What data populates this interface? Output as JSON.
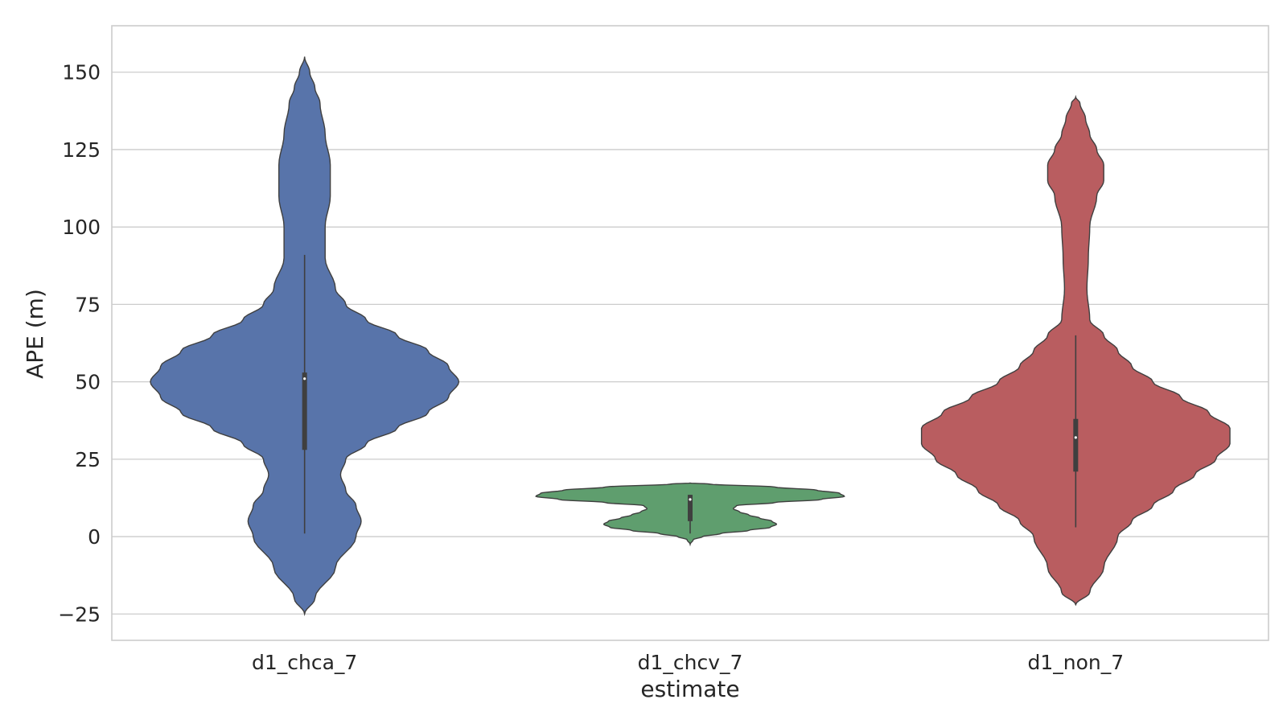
{
  "chart_data": {
    "type": "violin",
    "title": "",
    "xlabel": "estimate",
    "ylabel": "APE (m)",
    "ylim": [
      -33.5,
      165
    ],
    "yticks": [
      -25,
      0,
      25,
      50,
      75,
      100,
      125,
      150
    ],
    "ytick_labels": [
      "−25",
      "0",
      "25",
      "50",
      "75",
      "100",
      "125",
      "150"
    ],
    "grid": true,
    "categories": [
      "d1_chca_7",
      "d1_chcv_7",
      "d1_non_7"
    ],
    "series": [
      {
        "category": "d1_chca_7",
        "color": "#5874aa",
        "min": 1,
        "q1": 28,
        "median": 51,
        "q3": 53,
        "max": 91,
        "density": [
          [
            -25,
            0
          ],
          [
            -20,
            0.01
          ],
          [
            -10,
            0.03
          ],
          [
            0,
            0.05
          ],
          [
            5,
            0.055
          ],
          [
            10,
            0.05
          ],
          [
            15,
            0.04
          ],
          [
            20,
            0.035
          ],
          [
            25,
            0.04
          ],
          [
            30,
            0.06
          ],
          [
            35,
            0.09
          ],
          [
            40,
            0.12
          ],
          [
            45,
            0.14
          ],
          [
            50,
            0.15
          ],
          [
            55,
            0.14
          ],
          [
            60,
            0.12
          ],
          [
            65,
            0.09
          ],
          [
            70,
            0.06
          ],
          [
            75,
            0.04
          ],
          [
            80,
            0.03
          ],
          [
            90,
            0.02
          ],
          [
            100,
            0.02
          ],
          [
            110,
            0.025
          ],
          [
            120,
            0.025
          ],
          [
            130,
            0.02
          ],
          [
            140,
            0.015
          ],
          [
            145,
            0.01
          ],
          [
            150,
            0.005
          ],
          [
            155,
            0
          ]
        ]
      },
      {
        "category": "d1_chcv_7",
        "color": "#5f9e6e",
        "min": 1,
        "q1": 5,
        "median": 12,
        "q3": 13.5,
        "max": 13.5,
        "density": [
          [
            -2.5,
            0
          ],
          [
            -1,
            0.02
          ],
          [
            0,
            0.08
          ],
          [
            1,
            0.2
          ],
          [
            2,
            0.38
          ],
          [
            3,
            0.52
          ],
          [
            4,
            0.56
          ],
          [
            5,
            0.53
          ],
          [
            6,
            0.45
          ],
          [
            7,
            0.38
          ],
          [
            8,
            0.32
          ],
          [
            9,
            0.28
          ],
          [
            10,
            0.3
          ],
          [
            11,
            0.55
          ],
          [
            12,
            0.85
          ],
          [
            13,
            1.0
          ],
          [
            14,
            0.97
          ],
          [
            15,
            0.82
          ],
          [
            16,
            0.55
          ],
          [
            17,
            0.12
          ],
          [
            17.3,
            0
          ]
        ]
      },
      {
        "category": "d1_non_7",
        "color": "#b95d60",
        "min": 3,
        "q1": 21,
        "median": 32,
        "q3": 38,
        "max": 65,
        "density": [
          [
            -22,
            0
          ],
          [
            -18,
            0.01
          ],
          [
            -10,
            0.02
          ],
          [
            0,
            0.03
          ],
          [
            5,
            0.04
          ],
          [
            10,
            0.055
          ],
          [
            15,
            0.07
          ],
          [
            20,
            0.085
          ],
          [
            25,
            0.1
          ],
          [
            30,
            0.11
          ],
          [
            35,
            0.11
          ],
          [
            40,
            0.095
          ],
          [
            45,
            0.075
          ],
          [
            50,
            0.055
          ],
          [
            55,
            0.04
          ],
          [
            60,
            0.03
          ],
          [
            65,
            0.02
          ],
          [
            70,
            0.01
          ],
          [
            80,
            0.008
          ],
          [
            90,
            0.009
          ],
          [
            100,
            0.01
          ],
          [
            110,
            0.015
          ],
          [
            115,
            0.02
          ],
          [
            120,
            0.02
          ],
          [
            125,
            0.015
          ],
          [
            130,
            0.01
          ],
          [
            135,
            0.007
          ],
          [
            140,
            0.003
          ],
          [
            142,
            0
          ]
        ]
      }
    ]
  }
}
